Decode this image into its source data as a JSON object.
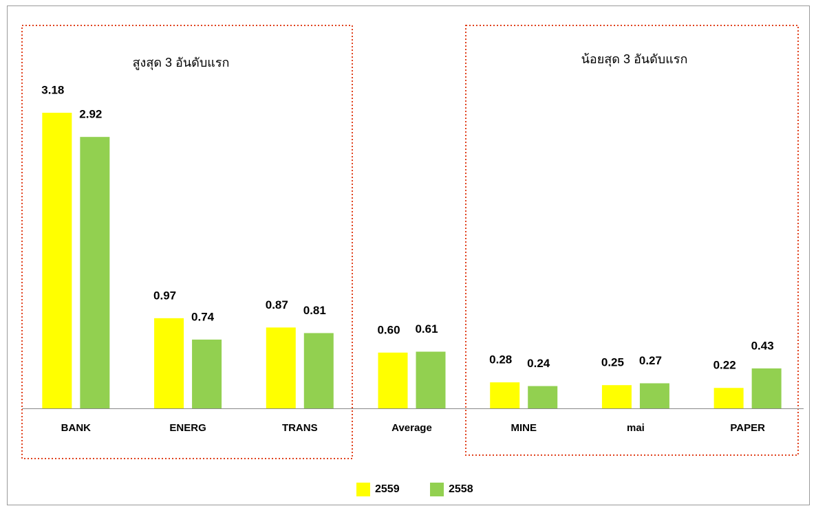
{
  "chart_data": {
    "type": "bar",
    "categories": [
      "BANK",
      "ENERG",
      "TRANS",
      "Average",
      "MINE",
      "mai",
      "PAPER"
    ],
    "series": [
      {
        "name": "2559",
        "color": "#ffff00",
        "values": [
          3.18,
          0.97,
          0.87,
          0.6,
          0.28,
          0.25,
          0.22
        ],
        "value_labels": [
          "3.18",
          "0.97",
          "0.87",
          "0.60",
          "0.28",
          "0.25",
          "0.22"
        ]
      },
      {
        "name": "2558",
        "color": "#92d050",
        "values": [
          2.92,
          0.74,
          0.81,
          0.61,
          0.24,
          0.27,
          0.43
        ],
        "value_labels": [
          "2.92",
          "0.74",
          "0.81",
          "0.61",
          "0.24",
          "0.27",
          "0.43"
        ]
      }
    ],
    "annotations": [
      {
        "text": "สูงสุด 3 อันดับแรก"
      },
      {
        "text": "น้อยสุด 3 อันดับแรก"
      }
    ],
    "legend": "bottom"
  }
}
